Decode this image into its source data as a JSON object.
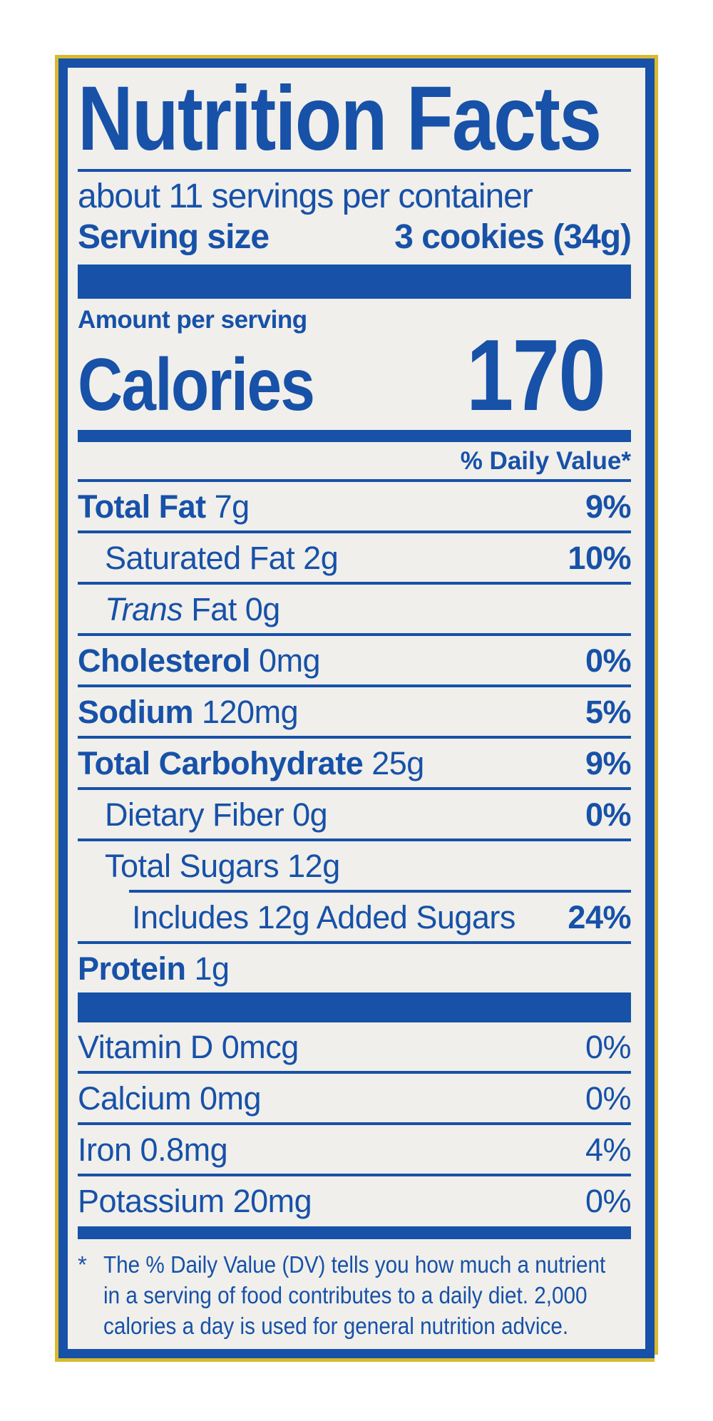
{
  "colors": {
    "blue": "#1751a8",
    "gold": "#d9ba2f",
    "panel": "#f0efeb"
  },
  "header": {
    "title": "Nutrition Facts",
    "servings_per_container": "about 11 servings per container",
    "serving_size_label": "Serving size",
    "serving_size_value": "3 cookies (34g)"
  },
  "calories": {
    "amount_per_serving": "Amount per serving",
    "label": "Calories",
    "value": "170"
  },
  "daily_value_header": "% Daily Value*",
  "nutrients": [
    {
      "bold": "Total Fat",
      "text": " 7g",
      "pct": "9%"
    },
    {
      "text": "Saturated Fat 2g",
      "pct": "10%"
    },
    {
      "italic": "Trans",
      "text": " Fat 0g",
      "pct": ""
    },
    {
      "bold": "Cholesterol",
      "text": " 0mg",
      "pct": "0%"
    },
    {
      "bold": "Sodium",
      "text": " 120mg",
      "pct": "5%"
    },
    {
      "bold": "Total Carbohydrate",
      "text": " 25g",
      "pct": "9%"
    },
    {
      "text": "Dietary Fiber 0g",
      "pct": "0%"
    },
    {
      "text": "Total Sugars 12g",
      "pct": ""
    },
    {
      "text": "Includes 12g Added Sugars",
      "pct": "24%"
    },
    {
      "bold": "Protein",
      "text": " 1g",
      "pct": ""
    }
  ],
  "micronutrients": [
    {
      "text": "Vitamin D 0mcg",
      "pct": "0%"
    },
    {
      "text": "Calcium 0mg",
      "pct": "0%"
    },
    {
      "text": "Iron 0.8mg",
      "pct": "4%"
    },
    {
      "text": "Potassium 20mg",
      "pct": "0%"
    }
  ],
  "footnote": {
    "star": "*",
    "line1": "The % Daily Value (DV) tells you how much a nutrient",
    "line2": "in a serving of food contributes to a daily diet. 2,000",
    "line3": "calories a day is used for general nutrition advice."
  }
}
